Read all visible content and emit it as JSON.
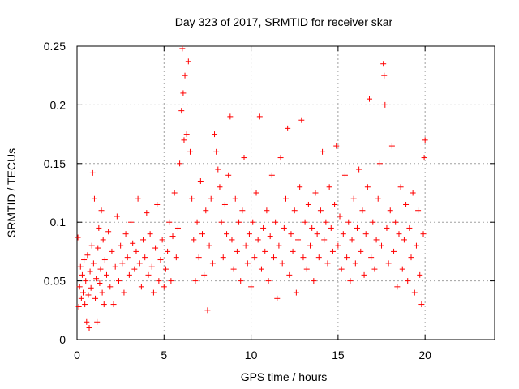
{
  "chart_data": {
    "type": "scatter",
    "title": "Day 323 of 2017, SRMTID for receiver skar",
    "xlabel": "GPS time / hours",
    "ylabel": "SRMTID / TECUs",
    "xlim": [
      0,
      24
    ],
    "ylim": [
      0,
      0.25
    ],
    "xticks": [
      0,
      5,
      10,
      15,
      20
    ],
    "yticks": [
      0,
      0.05,
      0.1,
      0.15,
      0.2,
      0.25
    ],
    "xtick_labels": [
      "0",
      "5",
      "10",
      "15",
      "20"
    ],
    "ytick_labels": [
      "0",
      "0.05",
      "0.1",
      "0.15",
      "0.2",
      "0.25"
    ],
    "grid": true,
    "marker": "+",
    "series_color": "#ff0000",
    "series": [
      {
        "points": [
          [
            0.05,
            0.087
          ],
          [
            0.1,
            0.028
          ],
          [
            0.15,
            0.045
          ],
          [
            0.2,
            0.062
          ],
          [
            0.25,
            0.035
          ],
          [
            0.3,
            0.055
          ],
          [
            0.35,
            0.04
          ],
          [
            0.4,
            0.068
          ],
          [
            0.45,
            0.03
          ],
          [
            0.5,
            0.05
          ],
          [
            0.55,
            0.015
          ],
          [
            0.6,
            0.072
          ],
          [
            0.65,
            0.038
          ],
          [
            0.7,
            0.01
          ],
          [
            0.75,
            0.058
          ],
          [
            0.8,
            0.044
          ],
          [
            0.85,
            0.08
          ],
          [
            0.9,
            0.142
          ],
          [
            0.95,
            0.065
          ],
          [
            1.0,
            0.12
          ],
          [
            1.05,
            0.035
          ],
          [
            1.1,
            0.052
          ],
          [
            1.15,
            0.015
          ],
          [
            1.2,
            0.078
          ],
          [
            1.25,
            0.095
          ],
          [
            1.3,
            0.048
          ],
          [
            1.35,
            0.06
          ],
          [
            1.4,
            0.11
          ],
          [
            1.45,
            0.04
          ],
          [
            1.5,
            0.085
          ],
          [
            1.55,
            0.03
          ],
          [
            1.6,
            0.068
          ],
          [
            1.7,
            0.055
          ],
          [
            1.8,
            0.092
          ],
          [
            1.9,
            0.045
          ],
          [
            2.0,
            0.075
          ],
          [
            2.1,
            0.03
          ],
          [
            2.2,
            0.062
          ],
          [
            2.3,
            0.105
          ],
          [
            2.4,
            0.05
          ],
          [
            2.5,
            0.08
          ],
          [
            2.6,
            0.065
          ],
          [
            2.7,
            0.04
          ],
          [
            2.8,
            0.09
          ],
          [
            2.9,
            0.07
          ],
          [
            3.0,
            0.055
          ],
          [
            3.1,
            0.1
          ],
          [
            3.2,
            0.082
          ],
          [
            3.3,
            0.06
          ],
          [
            3.4,
            0.075
          ],
          [
            3.5,
            0.12
          ],
          [
            3.6,
            0.065
          ],
          [
            3.7,
            0.045
          ],
          [
            3.8,
            0.085
          ],
          [
            3.9,
            0.07
          ],
          [
            4.0,
            0.108
          ],
          [
            4.1,
            0.055
          ],
          [
            4.2,
            0.09
          ],
          [
            4.3,
            0.062
          ],
          [
            4.4,
            0.04
          ],
          [
            4.5,
            0.078
          ],
          [
            4.6,
            0.115
          ],
          [
            4.7,
            0.05
          ],
          [
            4.8,
            0.068
          ],
          [
            4.9,
            0.085
          ],
          [
            5.0,
            0.045
          ],
          [
            5.1,
            0.06
          ],
          [
            5.2,
            0.075
          ],
          [
            5.3,
            0.1
          ],
          [
            5.4,
            0.05
          ],
          [
            5.5,
            0.088
          ],
          [
            5.6,
            0.125
          ],
          [
            5.7,
            0.07
          ],
          [
            5.8,
            0.095
          ],
          [
            5.9,
            0.15
          ],
          [
            6.0,
            0.195
          ],
          [
            6.05,
            0.248
          ],
          [
            6.1,
            0.21
          ],
          [
            6.15,
            0.17
          ],
          [
            6.2,
            0.225
          ],
          [
            6.3,
            0.175
          ],
          [
            6.4,
            0.237
          ],
          [
            6.5,
            0.16
          ],
          [
            6.6,
            0.12
          ],
          [
            6.7,
            0.085
          ],
          [
            6.8,
            0.05
          ],
          [
            6.9,
            0.1
          ],
          [
            7.0,
            0.07
          ],
          [
            7.1,
            0.135
          ],
          [
            7.2,
            0.09
          ],
          [
            7.3,
            0.055
          ],
          [
            7.4,
            0.11
          ],
          [
            7.5,
            0.025
          ],
          [
            7.6,
            0.08
          ],
          [
            7.7,
            0.12
          ],
          [
            7.8,
            0.065
          ],
          [
            7.9,
            0.175
          ],
          [
            8.0,
            0.16
          ],
          [
            8.1,
            0.145
          ],
          [
            8.2,
            0.13
          ],
          [
            8.3,
            0.1
          ],
          [
            8.4,
            0.07
          ],
          [
            8.5,
            0.115
          ],
          [
            8.6,
            0.09
          ],
          [
            8.7,
            0.14
          ],
          [
            8.8,
            0.19
          ],
          [
            8.9,
            0.085
          ],
          [
            9.0,
            0.06
          ],
          [
            9.1,
            0.12
          ],
          [
            9.2,
            0.075
          ],
          [
            9.3,
            0.1
          ],
          [
            9.4,
            0.05
          ],
          [
            9.5,
            0.11
          ],
          [
            9.6,
            0.155
          ],
          [
            9.7,
            0.08
          ],
          [
            9.8,
            0.065
          ],
          [
            9.9,
            0.09
          ],
          [
            10.0,
            0.045
          ],
          [
            10.1,
            0.1
          ],
          [
            10.2,
            0.07
          ],
          [
            10.3,
            0.125
          ],
          [
            10.4,
            0.085
          ],
          [
            10.5,
            0.19
          ],
          [
            10.6,
            0.06
          ],
          [
            10.7,
            0.095
          ],
          [
            10.8,
            0.075
          ],
          [
            10.9,
            0.11
          ],
          [
            11.0,
            0.05
          ],
          [
            11.1,
            0.088
          ],
          [
            11.2,
            0.14
          ],
          [
            11.3,
            0.07
          ],
          [
            11.4,
            0.1
          ],
          [
            11.5,
            0.035
          ],
          [
            11.6,
            0.08
          ],
          [
            11.7,
            0.155
          ],
          [
            11.8,
            0.065
          ],
          [
            11.9,
            0.095
          ],
          [
            12.0,
            0.12
          ],
          [
            12.1,
            0.18
          ],
          [
            12.2,
            0.055
          ],
          [
            12.3,
            0.09
          ],
          [
            12.4,
            0.075
          ],
          [
            12.5,
            0.11
          ],
          [
            12.6,
            0.04
          ],
          [
            12.7,
            0.085
          ],
          [
            12.8,
            0.13
          ],
          [
            12.9,
            0.187
          ],
          [
            13.0,
            0.07
          ],
          [
            13.1,
            0.1
          ],
          [
            13.2,
            0.06
          ],
          [
            13.3,
            0.115
          ],
          [
            13.4,
            0.08
          ],
          [
            13.5,
            0.095
          ],
          [
            13.6,
            0.05
          ],
          [
            13.7,
            0.125
          ],
          [
            13.8,
            0.09
          ],
          [
            13.9,
            0.07
          ],
          [
            14.0,
            0.11
          ],
          [
            14.1,
            0.16
          ],
          [
            14.2,
            0.085
          ],
          [
            14.3,
            0.1
          ],
          [
            14.4,
            0.065
          ],
          [
            14.5,
            0.13
          ],
          [
            14.6,
            0.095
          ],
          [
            14.7,
            0.075
          ],
          [
            14.8,
            0.115
          ],
          [
            14.9,
            0.165
          ],
          [
            15.0,
            0.08
          ],
          [
            15.1,
            0.105
          ],
          [
            15.2,
            0.06
          ],
          [
            15.3,
            0.09
          ],
          [
            15.4,
            0.14
          ],
          [
            15.5,
            0.07
          ],
          [
            15.6,
            0.1
          ],
          [
            15.7,
            0.05
          ],
          [
            15.8,
            0.085
          ],
          [
            15.9,
            0.12
          ],
          [
            16.0,
            0.065
          ],
          [
            16.1,
            0.095
          ],
          [
            16.2,
            0.145
          ],
          [
            16.3,
            0.075
          ],
          [
            16.4,
            0.11
          ],
          [
            16.5,
            0.055
          ],
          [
            16.6,
            0.09
          ],
          [
            16.7,
            0.13
          ],
          [
            16.8,
            0.205
          ],
          [
            16.9,
            0.07
          ],
          [
            17.0,
            0.1
          ],
          [
            17.1,
            0.06
          ],
          [
            17.2,
            0.085
          ],
          [
            17.3,
            0.12
          ],
          [
            17.4,
            0.15
          ],
          [
            17.5,
            0.08
          ],
          [
            17.6,
            0.235
          ],
          [
            17.65,
            0.225
          ],
          [
            17.7,
            0.2
          ],
          [
            17.8,
            0.095
          ],
          [
            17.9,
            0.065
          ],
          [
            18.0,
            0.11
          ],
          [
            18.1,
            0.165
          ],
          [
            18.2,
            0.075
          ],
          [
            18.3,
            0.1
          ],
          [
            18.4,
            0.045
          ],
          [
            18.5,
            0.09
          ],
          [
            18.6,
            0.13
          ],
          [
            18.7,
            0.06
          ],
          [
            18.8,
            0.085
          ],
          [
            18.9,
            0.115
          ],
          [
            19.0,
            0.05
          ],
          [
            19.1,
            0.095
          ],
          [
            19.2,
            0.07
          ],
          [
            19.3,
            0.125
          ],
          [
            19.4,
            0.04
          ],
          [
            19.5,
            0.08
          ],
          [
            19.6,
            0.11
          ],
          [
            19.7,
            0.055
          ],
          [
            19.8,
            0.03
          ],
          [
            19.9,
            0.09
          ],
          [
            19.95,
            0.155
          ],
          [
            20.0,
            0.17
          ]
        ]
      }
    ]
  }
}
